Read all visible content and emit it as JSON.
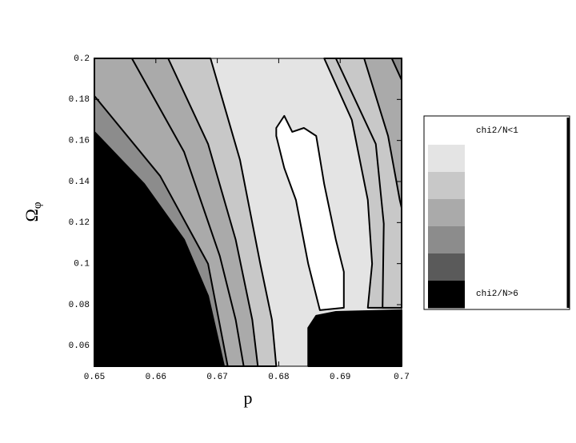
{
  "chart_data": {
    "type": "contour",
    "xlabel": "p",
    "ylabel": {
      "text": "Ω",
      "subscript": "φ"
    },
    "xlim": [
      0.65,
      0.7
    ],
    "xticks": [
      0.65,
      0.66,
      0.67,
      0.68,
      0.69,
      0.7
    ],
    "ylim": [
      0.05,
      0.2
    ],
    "yticks": [
      0.06,
      0.08,
      0.1,
      0.12,
      0.14,
      0.16,
      0.18,
      0.2
    ],
    "level_colors": [
      "#ffffff",
      "#e4e4e4",
      "#c8c8c8",
      "#aaaaaa",
      "#8c8c8c",
      "#5a5a5a",
      "#000000"
    ],
    "background_level": 1,
    "legend": {
      "labels": [
        "chi2/N<1",
        "chi2/N>6"
      ]
    },
    "regions": [
      {
        "level": 2,
        "points": [
          [
            0.6689,
            0.2
          ],
          [
            0.6737,
            0.1505
          ],
          [
            0.677,
            0.0999
          ],
          [
            0.6789,
            0.0726
          ],
          [
            0.6796,
            0.05
          ],
          [
            0.65,
            0.05
          ],
          [
            0.65,
            0.2
          ]
        ]
      },
      {
        "level": 3,
        "points": [
          [
            0.662,
            0.2
          ],
          [
            0.6685,
            0.1583
          ],
          [
            0.673,
            0.1116
          ],
          [
            0.6757,
            0.0726
          ],
          [
            0.6766,
            0.05
          ],
          [
            0.65,
            0.05
          ],
          [
            0.65,
            0.2
          ]
        ]
      },
      {
        "level": 3,
        "points": [
          [
            0.6561,
            0.2
          ],
          [
            0.6646,
            0.1544
          ],
          [
            0.6704,
            0.1038
          ],
          [
            0.673,
            0.0726
          ],
          [
            0.6743,
            0.05
          ],
          [
            0.65,
            0.05
          ],
          [
            0.65,
            0.2
          ]
        ]
      },
      {
        "level": 4,
        "points": [
          [
            0.65,
            0.1817
          ],
          [
            0.6607,
            0.1427
          ],
          [
            0.6685,
            0.0999
          ],
          [
            0.6717,
            0.05
          ],
          [
            0.65,
            0.05
          ]
        ]
      },
      {
        "level": 6,
        "points": [
          [
            0.65,
            0.1642
          ],
          [
            0.6581,
            0.1388
          ],
          [
            0.6646,
            0.1116
          ],
          [
            0.6685,
            0.0843
          ],
          [
            0.6711,
            0.05
          ],
          [
            0.65,
            0.05
          ]
        ]
      },
      {
        "level": 0,
        "points": [
          [
            0.6796,
            0.1661
          ],
          [
            0.6809,
            0.172
          ],
          [
            0.6822,
            0.1642
          ],
          [
            0.6841,
            0.1661
          ],
          [
            0.6861,
            0.1622
          ],
          [
            0.6874,
            0.1388
          ],
          [
            0.6893,
            0.1116
          ],
          [
            0.6906,
            0.096
          ],
          [
            0.6906,
            0.0785
          ],
          [
            0.6867,
            0.0773
          ],
          [
            0.6848,
            0.0999
          ],
          [
            0.6828,
            0.131
          ],
          [
            0.6809,
            0.1466
          ],
          [
            0.6796,
            0.1622
          ]
        ]
      },
      {
        "level": 2,
        "points": [
          [
            0.6874,
            0.2
          ],
          [
            0.6919,
            0.17
          ],
          [
            0.6945,
            0.131
          ],
          [
            0.6952,
            0.0999
          ],
          [
            0.6945,
            0.0785
          ],
          [
            0.7,
            0.0785
          ],
          [
            0.7,
            0.2
          ]
        ]
      },
      {
        "level": 2,
        "points": [
          [
            0.6893,
            0.2
          ],
          [
            0.6958,
            0.1583
          ],
          [
            0.6971,
            0.1194
          ],
          [
            0.6969,
            0.0785
          ],
          [
            0.7,
            0.0785
          ],
          [
            0.7,
            0.2
          ]
        ]
      },
      {
        "level": 3,
        "points": [
          [
            0.6939,
            0.2
          ],
          [
            0.6978,
            0.1622
          ],
          [
            0.6997,
            0.131
          ],
          [
            0.7,
            0.1272
          ],
          [
            0.7,
            0.2
          ]
        ]
      },
      {
        "level": 4,
        "points": [
          [
            0.6984,
            0.2
          ],
          [
            0.7,
            0.1895
          ],
          [
            0.7,
            0.2
          ]
        ]
      },
      {
        "level": 6,
        "points": [
          [
            0.6848,
            0.05
          ],
          [
            0.6848,
            0.0687
          ],
          [
            0.6861,
            0.0746
          ],
          [
            0.6893,
            0.0765
          ],
          [
            0.7,
            0.0773
          ],
          [
            0.7,
            0.05
          ]
        ]
      }
    ]
  }
}
